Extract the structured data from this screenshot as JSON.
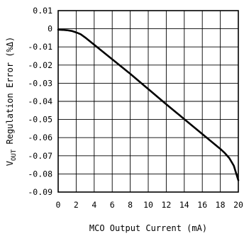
{
  "chart_data": {
    "type": "line",
    "title": "",
    "xlabel": "MCO Output Current (mA)",
    "ylabel": {
      "prefix": "V",
      "subscript": "OUT",
      "rest": " Regulation Error (%Δ)"
    },
    "xlim": [
      0,
      20
    ],
    "ylim": [
      -0.09,
      0.01
    ],
    "x_ticks": [
      0,
      2,
      4,
      6,
      8,
      10,
      12,
      14,
      16,
      18,
      20
    ],
    "x_tick_labels": [
      "0",
      "2",
      "4",
      "6",
      "8",
      "10",
      "12",
      "14",
      "16",
      "18",
      "20"
    ],
    "y_ticks": [
      0.01,
      0,
      -0.01,
      -0.02,
      -0.03,
      -0.04,
      -0.05,
      -0.06,
      -0.07,
      -0.08,
      -0.09
    ],
    "y_tick_labels": [
      "0.01",
      "0",
      "-0.01",
      "-0.02",
      "-0.03",
      "-0.04",
      "-0.05",
      "-0.06",
      "-0.07",
      "-0.08",
      "-0.09"
    ],
    "grid": true,
    "series": [
      {
        "x": [
          0,
          0.5,
          1,
          1.5,
          2,
          2.5,
          3,
          3.5,
          4,
          5,
          6,
          7,
          8,
          9,
          10,
          11,
          12,
          13,
          14,
          15,
          16,
          17,
          18,
          18.5,
          19,
          19.5,
          20
        ],
        "y": [
          -0.0005,
          -0.0006,
          -0.0008,
          -0.0012,
          -0.002,
          -0.003,
          -0.0048,
          -0.0068,
          -0.0088,
          -0.0128,
          -0.0168,
          -0.0208,
          -0.0248,
          -0.029,
          -0.0332,
          -0.0374,
          -0.0416,
          -0.0457,
          -0.0498,
          -0.0539,
          -0.058,
          -0.0621,
          -0.0662,
          -0.0685,
          -0.0713,
          -0.0755,
          -0.0835
        ],
        "color": "#000000"
      }
    ]
  }
}
